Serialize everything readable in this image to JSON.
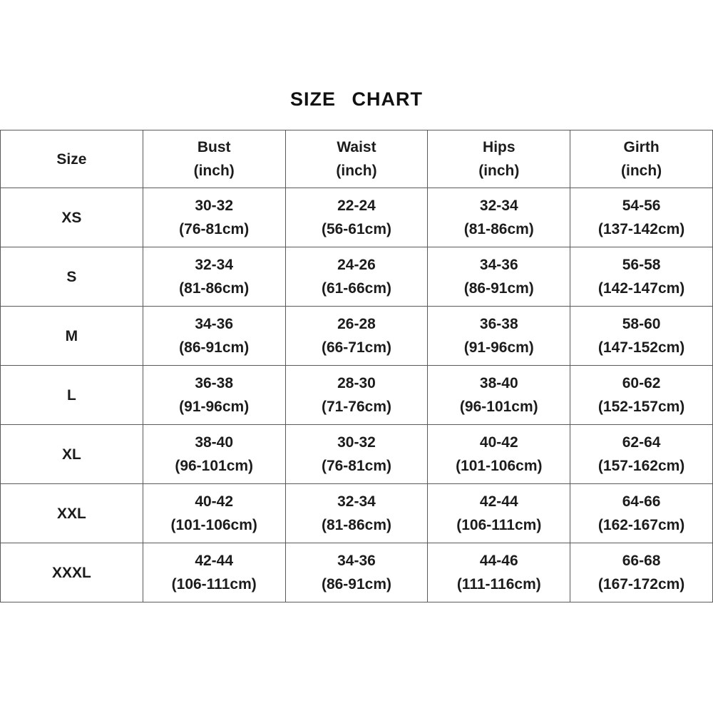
{
  "page": {
    "title": "SIZE CHART"
  },
  "table": {
    "columns": [
      {
        "label": "Size",
        "sub": ""
      },
      {
        "label": "Bust",
        "sub": "(inch)"
      },
      {
        "label": "Waist",
        "sub": "(inch)"
      },
      {
        "label": "Hips",
        "sub": "(inch)"
      },
      {
        "label": "Girth",
        "sub": "(inch)"
      }
    ],
    "rows": [
      {
        "size": "XS",
        "cells": [
          [
            "30-32",
            "(76-81cm)"
          ],
          [
            "22-24",
            "(56-61cm)"
          ],
          [
            "32-34",
            "(81-86cm)"
          ],
          [
            "54-56",
            "(137-142cm)"
          ]
        ]
      },
      {
        "size": "S",
        "cells": [
          [
            "32-34",
            "(81-86cm)"
          ],
          [
            "24-26",
            "(61-66cm)"
          ],
          [
            "34-36",
            "(86-91cm)"
          ],
          [
            "56-58",
            "(142-147cm)"
          ]
        ]
      },
      {
        "size": "M",
        "cells": [
          [
            "34-36",
            "(86-91cm)"
          ],
          [
            "26-28",
            "(66-71cm)"
          ],
          [
            "36-38",
            "(91-96cm)"
          ],
          [
            "58-60",
            "(147-152cm)"
          ]
        ]
      },
      {
        "size": "L",
        "cells": [
          [
            "36-38",
            "(91-96cm)"
          ],
          [
            "28-30",
            "(71-76cm)"
          ],
          [
            "38-40",
            "(96-101cm)"
          ],
          [
            "60-62",
            "(152-157cm)"
          ]
        ]
      },
      {
        "size": "XL",
        "cells": [
          [
            "38-40",
            "(96-101cm)"
          ],
          [
            "30-32",
            "(76-81cm)"
          ],
          [
            "40-42",
            "(101-106cm)"
          ],
          [
            "62-64",
            "(157-162cm)"
          ]
        ]
      },
      {
        "size": "XXL",
        "cells": [
          [
            "40-42",
            "(101-106cm)"
          ],
          [
            "32-34",
            "(81-86cm)"
          ],
          [
            "42-44",
            "(106-111cm)"
          ],
          [
            "64-66",
            "(162-167cm)"
          ]
        ]
      },
      {
        "size": "XXXL",
        "cells": [
          [
            "42-44",
            "(106-111cm)"
          ],
          [
            "34-36",
            "(86-91cm)"
          ],
          [
            "44-46",
            "(111-116cm)"
          ],
          [
            "66-68",
            "(167-172cm)"
          ]
        ]
      }
    ]
  },
  "chart_data": {
    "type": "table",
    "title": "SIZE CHART",
    "columns": [
      "Size",
      "Bust (inch)",
      "Waist (inch)",
      "Hips (inch)",
      "Girth (inch)"
    ],
    "rows": [
      [
        "XS",
        "30-32 (76-81cm)",
        "22-24 (56-61cm)",
        "32-34 (81-86cm)",
        "54-56 (137-142cm)"
      ],
      [
        "S",
        "32-34 (81-86cm)",
        "24-26 (61-66cm)",
        "34-36 (86-91cm)",
        "56-58 (142-147cm)"
      ],
      [
        "M",
        "34-36 (86-91cm)",
        "26-28 (66-71cm)",
        "36-38 (91-96cm)",
        "58-60 (147-152cm)"
      ],
      [
        "L",
        "36-38 (91-96cm)",
        "28-30 (71-76cm)",
        "38-40 (96-101cm)",
        "60-62 (152-157cm)"
      ],
      [
        "XL",
        "38-40 (96-101cm)",
        "30-32 (76-81cm)",
        "40-42 (101-106cm)",
        "62-64 (157-162cm)"
      ],
      [
        "XXL",
        "40-42 (101-106cm)",
        "32-34 (81-86cm)",
        "42-44 (106-111cm)",
        "64-66 (162-167cm)"
      ],
      [
        "XXXL",
        "42-44 (106-111cm)",
        "34-36 (86-91cm)",
        "44-46 (111-116cm)",
        "66-68 (167-172cm)"
      ]
    ],
    "colors": {
      "text": "#1c1c1c",
      "border": "#595959",
      "background": "#ffffff"
    }
  }
}
